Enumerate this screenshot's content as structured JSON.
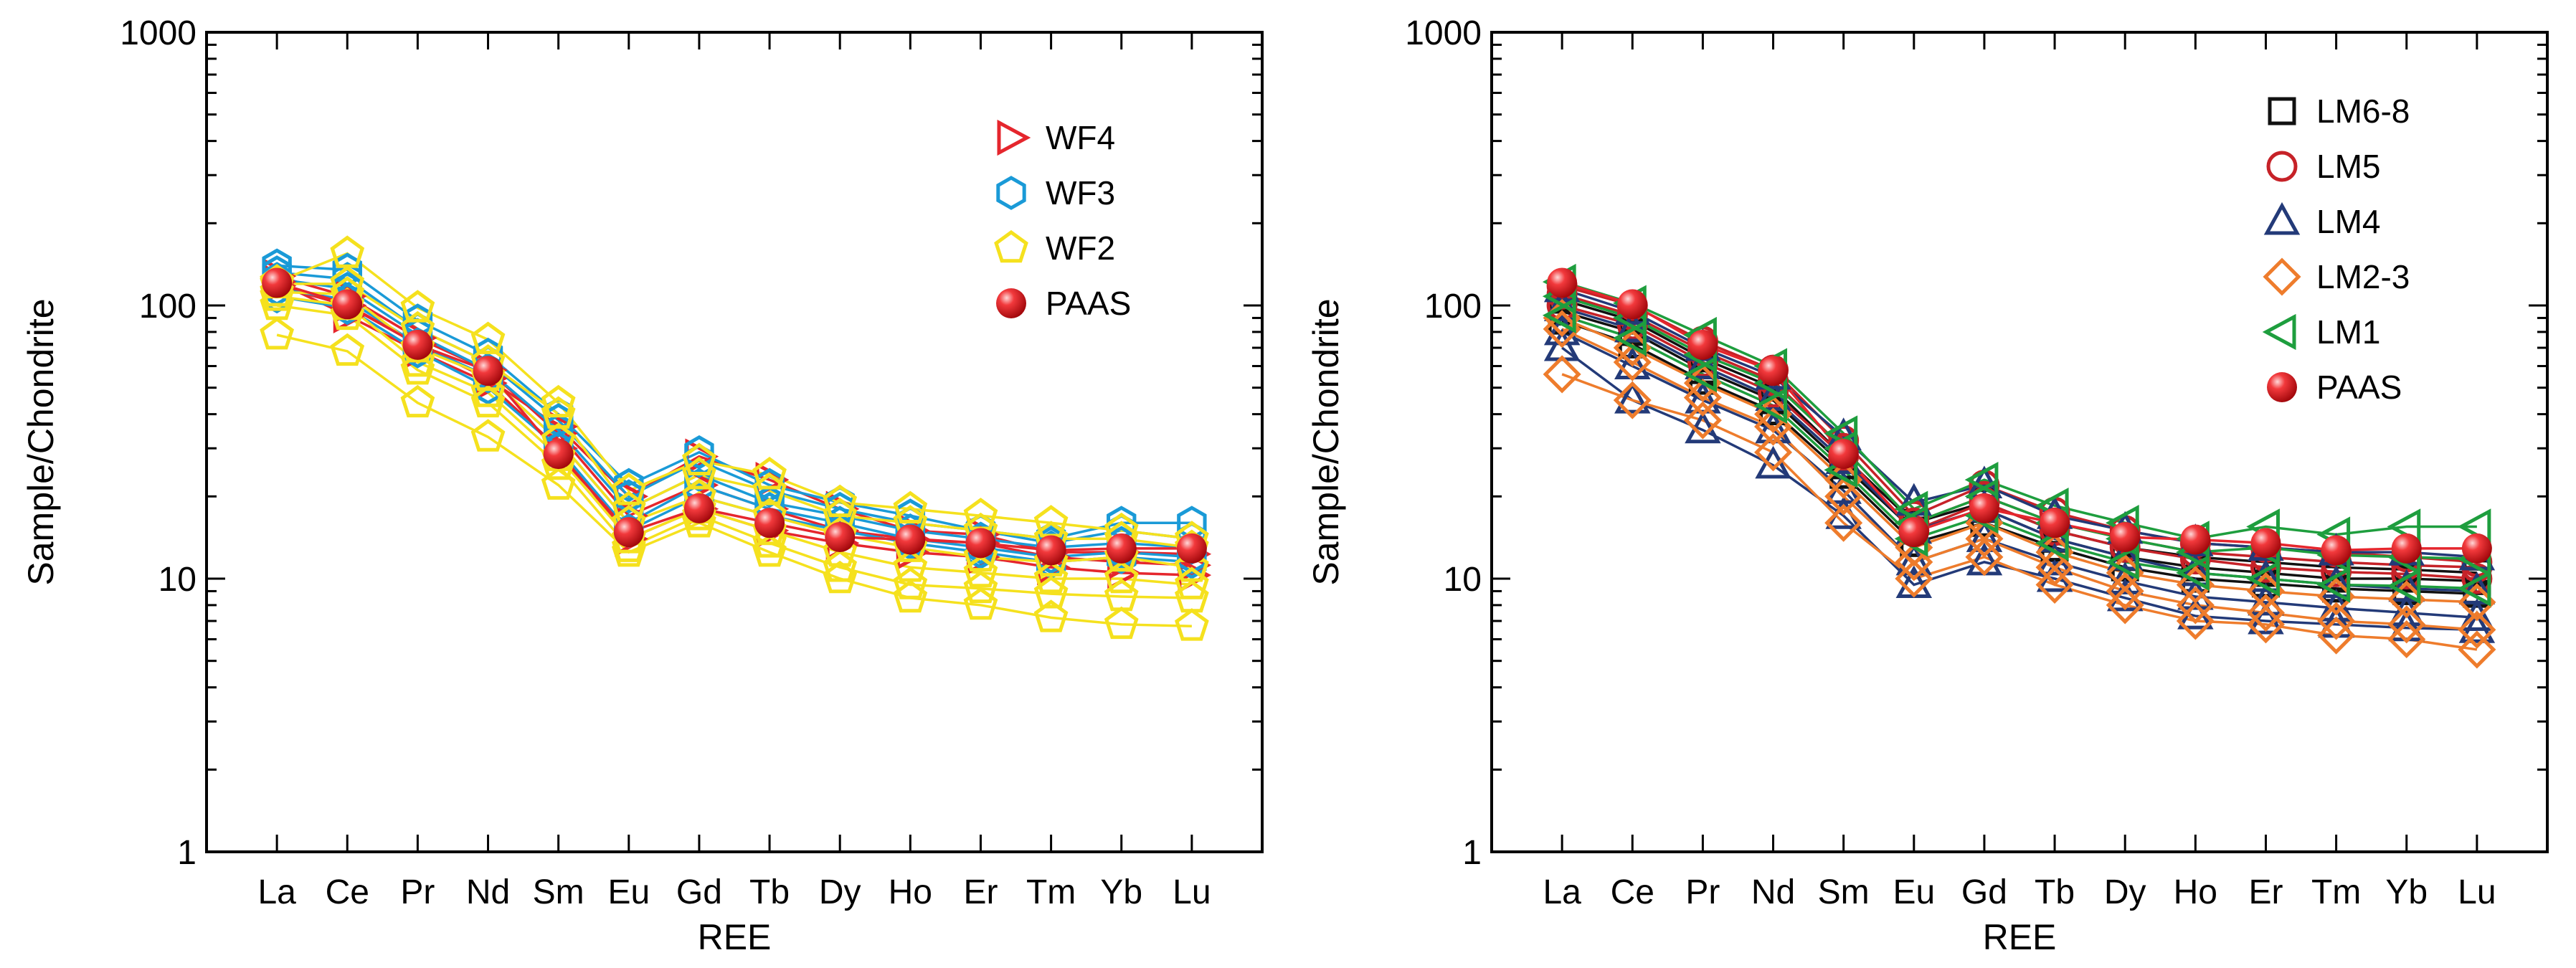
{
  "figure": {
    "panels": 2
  },
  "colors": {
    "red": "#e5262d",
    "blue": "#1a9ad7",
    "yellow": "#f5e11e",
    "black": "#111111",
    "darkred": "#c62228",
    "navy": "#233a78",
    "orange": "#ee7c2c",
    "green": "#1e9e3e",
    "paas": "#e5262d"
  },
  "chart_data": [
    {
      "type": "line",
      "scale": "log",
      "xlabel": "REE",
      "ylabel": "Sample/Chondrite",
      "ylim": [
        1,
        1000
      ],
      "yticks": [
        "1",
        "10",
        "100",
        "1000"
      ],
      "categories": [
        "La",
        "Ce",
        "Pr",
        "Nd",
        "Sm",
        "Eu",
        "Gd",
        "Tb",
        "Dy",
        "Ho",
        "Er",
        "Tm",
        "Yb",
        "Lu"
      ],
      "legend": [
        {
          "label": "WF4",
          "marker": "triangle-right",
          "color": "red"
        },
        {
          "label": "WF3",
          "marker": "hexagon",
          "color": "blue"
        },
        {
          "label": "WF2",
          "marker": "pentagon",
          "color": "yellow"
        },
        {
          "label": "PAAS",
          "marker": "ball",
          "color": "paas"
        }
      ],
      "series": [
        {
          "name": "WF4",
          "marker": "triangle-right",
          "color": "red",
          "values": [
            122,
            92,
            68,
            52,
            30,
            14,
            18,
            15,
            13.5,
            12.5,
            12,
            11,
            10.5,
            10.3
          ]
        },
        {
          "name": "WF4",
          "marker": "triangle-right",
          "color": "red",
          "values": [
            128,
            108,
            76,
            58,
            34,
            17,
            22,
            18,
            15,
            14,
            13.5,
            12,
            11.5,
            11.2
          ]
        },
        {
          "name": "WF4",
          "marker": "triangle-right",
          "color": "red",
          "values": [
            118,
            100,
            72,
            54,
            36,
            20,
            28,
            23,
            18,
            15,
            14.5,
            12.5,
            12.5,
            12.3
          ]
        },
        {
          "name": "WF3",
          "marker": "hexagon",
          "color": "blue",
          "values": [
            140,
            135,
            88,
            66,
            40,
            22,
            29,
            22,
            19,
            17,
            15,
            14,
            16,
            16
          ]
        },
        {
          "name": "WF3",
          "marker": "hexagon",
          "color": "blue",
          "values": [
            132,
            125,
            82,
            62,
            38,
            20,
            27,
            21,
            18,
            16,
            15,
            13.5,
            15,
            14
          ]
        },
        {
          "name": "WF3",
          "marker": "hexagon",
          "color": "blue",
          "values": [
            125,
            115,
            78,
            58,
            35,
            18,
            24,
            19,
            17,
            15,
            14,
            13,
            13.5,
            13
          ]
        },
        {
          "name": "WF3",
          "marker": "hexagon",
          "color": "blue",
          "values": [
            115,
            105,
            72,
            55,
            32,
            16,
            22,
            18,
            16,
            14,
            13,
            12,
            12.5,
            12
          ]
        },
        {
          "name": "WF3",
          "marker": "hexagon",
          "color": "blue",
          "values": [
            108,
            98,
            68,
            50,
            30,
            15,
            20,
            17,
            15,
            13.5,
            12.5,
            11.5,
            12,
            11.5
          ]
        },
        {
          "name": "WF2",
          "marker": "pentagon",
          "color": "yellow",
          "values": [
            122,
            155,
            98,
            75,
            44,
            21,
            27,
            24,
            19,
            18,
            17,
            16,
            15,
            14
          ]
        },
        {
          "name": "WF2",
          "marker": "pentagon",
          "color": "yellow",
          "values": [
            120,
            120,
            82,
            62,
            40,
            18,
            24,
            21,
            17,
            16,
            15,
            14,
            14,
            13
          ]
        },
        {
          "name": "WF2",
          "marker": "pentagon",
          "color": "yellow",
          "values": [
            112,
            110,
            70,
            55,
            32,
            16,
            20,
            17,
            14.5,
            13,
            12,
            11.5,
            12,
            11
          ]
        },
        {
          "name": "WF2",
          "marker": "pentagon",
          "color": "yellow",
          "values": [
            108,
            100,
            62,
            48,
            28,
            14,
            18,
            15,
            12.5,
            11,
            10.5,
            10,
            10,
            9.5
          ]
        },
        {
          "name": "WF2",
          "marker": "pentagon",
          "color": "yellow",
          "values": [
            100,
            92,
            58,
            44,
            26,
            13,
            17,
            13.5,
            11,
            9.5,
            9.2,
            8.8,
            8.6,
            8.5
          ]
        },
        {
          "name": "WF2",
          "marker": "pentagon",
          "color": "yellow",
          "values": [
            78,
            68,
            44,
            33,
            22,
            12.5,
            16,
            12.5,
            10,
            8.5,
            8,
            7.2,
            6.8,
            6.7
          ]
        },
        {
          "name": "PAAS",
          "marker": "ball",
          "color": "paas",
          "values": [
            121,
            101,
            71.8,
            57.6,
            28.6,
            14.8,
            18.1,
            16,
            14.2,
            13.9,
            13.5,
            12.7,
            12.9,
            12.9
          ]
        }
      ]
    },
    {
      "type": "line",
      "scale": "log",
      "xlabel": "REE",
      "ylabel": "Sample/Chondrite",
      "ylim": [
        1,
        1000
      ],
      "yticks": [
        "1",
        "10",
        "100",
        "1000"
      ],
      "categories": [
        "La",
        "Ce",
        "Pr",
        "Nd",
        "Sm",
        "Eu",
        "Gd",
        "Tb",
        "Dy",
        "Ho",
        "Er",
        "Tm",
        "Yb",
        "Lu"
      ],
      "legend": [
        {
          "label": "LM6-8",
          "marker": "square",
          "color": "black"
        },
        {
          "label": "LM5",
          "marker": "circle",
          "color": "darkred"
        },
        {
          "label": "LM4",
          "marker": "triangle-up",
          "color": "navy"
        },
        {
          "label": "LM2-3",
          "marker": "diamond",
          "color": "orange"
        },
        {
          "label": "LM1",
          "marker": "triangle-left",
          "color": "green"
        },
        {
          "label": "PAAS",
          "marker": "ball",
          "color": "paas"
        }
      ],
      "series": [
        {
          "name": "LM6-8",
          "marker": "square",
          "color": "black",
          "values": [
            105,
            88,
            64,
            50,
            28,
            16,
            19,
            15,
            13,
            12,
            11.5,
            11,
            10.8,
            10.5
          ]
        },
        {
          "name": "LM6-8",
          "marker": "square",
          "color": "black",
          "values": [
            95,
            80,
            58,
            45,
            26,
            15,
            18,
            14,
            12,
            11,
            10.5,
            10,
            10,
            9.8
          ]
        },
        {
          "name": "LM6-8",
          "marker": "square",
          "color": "black",
          "values": [
            88,
            72,
            53,
            41,
            24,
            13.5,
            16,
            13,
            11,
            10,
            9.6,
            9.2,
            9,
            8.8
          ]
        },
        {
          "name": "LM5",
          "marker": "circle",
          "color": "darkred",
          "values": [
            118,
            100,
            74,
            58,
            32,
            17,
            22,
            17.5,
            15,
            13.5,
            13,
            12.5,
            12,
            11.5
          ]
        },
        {
          "name": "LM5",
          "marker": "circle",
          "color": "darkred",
          "values": [
            110,
            92,
            68,
            53,
            30,
            16,
            20,
            16,
            14,
            12.5,
            12,
            11.5,
            11.2,
            11
          ]
        },
        {
          "name": "LM5",
          "marker": "circle",
          "color": "darkred",
          "values": [
            100,
            85,
            62,
            48,
            28,
            15,
            19,
            15,
            13,
            11.8,
            11,
            10.6,
            10.4,
            10
          ]
        },
        {
          "name": "LM4",
          "marker": "triangle-up",
          "color": "navy",
          "values": [
            115,
            95,
            70,
            55,
            33,
            19,
            22,
            17,
            15,
            13.5,
            13,
            12.5,
            12.5,
            12
          ]
        },
        {
          "name": "LM4",
          "marker": "triangle-up",
          "color": "navy",
          "values": [
            98,
            82,
            60,
            46,
            27,
            15,
            18,
            14,
            12,
            10.5,
            10,
            9.5,
            9.2,
            9
          ]
        },
        {
          "name": "LM4",
          "marker": "triangle-up",
          "color": "navy",
          "values": [
            80,
            60,
            45,
            35,
            21,
            11.5,
            14,
            11.5,
            9.8,
            8.6,
            8.2,
            7.8,
            7.5,
            7.2
          ]
        },
        {
          "name": "LM4",
          "marker": "triangle-up",
          "color": "navy",
          "values": [
            70,
            45,
            35,
            26,
            17,
            9.5,
            11.5,
            10,
            8.5,
            7.3,
            7,
            6.8,
            6.6,
            6.5
          ]
        },
        {
          "name": "LM2-3",
          "marker": "diamond",
          "color": "orange",
          "values": [
            90,
            70,
            52,
            40,
            23,
            13,
            16,
            12.5,
            10.5,
            9.5,
            9,
            8.6,
            8.4,
            8.2
          ]
        },
        {
          "name": "LM2-3",
          "marker": "diamond",
          "color": "orange",
          "values": [
            82,
            62,
            46,
            36,
            20,
            11.5,
            14,
            11,
            9,
            8,
            7.5,
            7,
            6.8,
            6.5
          ]
        },
        {
          "name": "LM2-3",
          "marker": "diamond",
          "color": "orange",
          "values": [
            56,
            45,
            38,
            29,
            16,
            10,
            12,
            9.5,
            8,
            7,
            6.8,
            6.2,
            6,
            5.5
          ]
        },
        {
          "name": "LM1",
          "marker": "triangle-left",
          "color": "green",
          "values": [
            122,
            102,
            78,
            60,
            34,
            18,
            23,
            18.5,
            16,
            14,
            15.5,
            14.5,
            15.5,
            15.5
          ]
        },
        {
          "name": "LM1",
          "marker": "triangle-left",
          "color": "green",
          "values": [
            108,
            90,
            66,
            52,
            30,
            16,
            20,
            16,
            14,
            12.5,
            13,
            12.2,
            12,
            11.8
          ]
        },
        {
          "name": "LM1",
          "marker": "triangle-left",
          "color": "green",
          "values": [
            92,
            76,
            56,
            43,
            25,
            14,
            17,
            13.5,
            11.5,
            10.5,
            10,
            9.5,
            9.4,
            9.2
          ]
        },
        {
          "name": "PAAS",
          "marker": "ball",
          "color": "paas",
          "values": [
            121,
            101,
            71.8,
            57.6,
            28.6,
            14.8,
            18.1,
            16,
            14.2,
            13.9,
            13.5,
            12.7,
            12.9,
            12.9
          ]
        }
      ]
    }
  ]
}
